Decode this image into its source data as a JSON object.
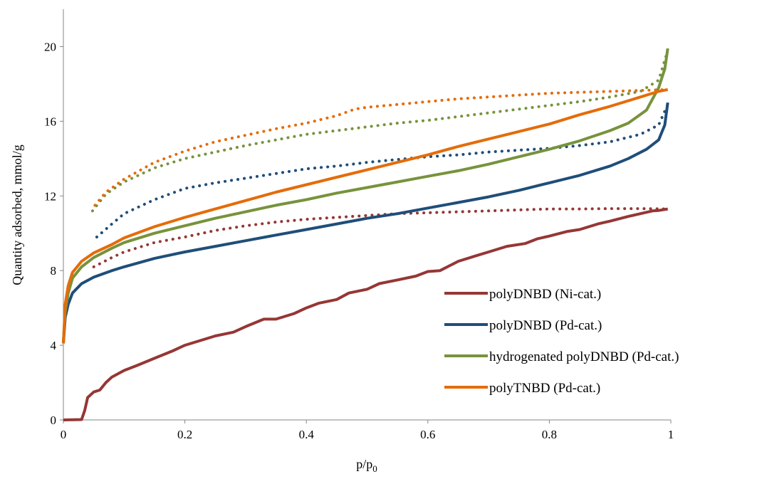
{
  "chart_data": {
    "type": "line",
    "title": "",
    "xlabel": "p/p",
    "xlabel_sub": "0",
    "ylabel": "Quantity adsorbed, mmol/g",
    "xlim": [
      0,
      1
    ],
    "ylim": [
      0,
      22
    ],
    "xticks": [
      0,
      0.2,
      0.4,
      0.6,
      0.8,
      1
    ],
    "xtick_labels": [
      "0",
      "0.2",
      "0.4",
      "0.6",
      "0.8",
      "1"
    ],
    "yticks": [
      0,
      4,
      8,
      12,
      16,
      20
    ],
    "ytick_labels": [
      "0",
      "4",
      "8",
      "12",
      "16",
      "20"
    ],
    "grid": false,
    "legend_position": "lower-right",
    "series": [
      {
        "name": "polyDNBD (Ni-cat.)",
        "color": "#953735",
        "style": "solid",
        "points": [
          [
            0,
            0
          ],
          [
            0.03,
            0.02
          ],
          [
            0.035,
            0.5
          ],
          [
            0.04,
            1.2
          ],
          [
            0.05,
            1.5
          ],
          [
            0.06,
            1.6
          ],
          [
            0.07,
            2.0
          ],
          [
            0.08,
            2.3
          ],
          [
            0.1,
            2.65
          ],
          [
            0.12,
            2.9
          ],
          [
            0.15,
            3.3
          ],
          [
            0.18,
            3.7
          ],
          [
            0.2,
            4.0
          ],
          [
            0.25,
            4.5
          ],
          [
            0.28,
            4.7
          ],
          [
            0.3,
            5.0
          ],
          [
            0.33,
            5.4
          ],
          [
            0.35,
            5.4
          ],
          [
            0.38,
            5.7
          ],
          [
            0.4,
            6.0
          ],
          [
            0.42,
            6.25
          ],
          [
            0.45,
            6.45
          ],
          [
            0.47,
            6.8
          ],
          [
            0.5,
            7.0
          ],
          [
            0.52,
            7.3
          ],
          [
            0.55,
            7.5
          ],
          [
            0.58,
            7.7
          ],
          [
            0.6,
            7.95
          ],
          [
            0.62,
            8.0
          ],
          [
            0.65,
            8.5
          ],
          [
            0.68,
            8.8
          ],
          [
            0.7,
            9.0
          ],
          [
            0.73,
            9.3
          ],
          [
            0.76,
            9.45
          ],
          [
            0.78,
            9.7
          ],
          [
            0.8,
            9.85
          ],
          [
            0.83,
            10.1
          ],
          [
            0.85,
            10.2
          ],
          [
            0.88,
            10.5
          ],
          [
            0.9,
            10.65
          ],
          [
            0.93,
            10.9
          ],
          [
            0.95,
            11.05
          ],
          [
            0.97,
            11.2
          ],
          [
            0.98,
            11.22
          ],
          [
            0.995,
            11.3
          ]
        ]
      },
      {
        "name": "",
        "color": "#953735",
        "style": "dotted",
        "points": [
          [
            0.05,
            8.2
          ],
          [
            0.08,
            8.7
          ],
          [
            0.1,
            9.0
          ],
          [
            0.15,
            9.5
          ],
          [
            0.2,
            9.8
          ],
          [
            0.25,
            10.15
          ],
          [
            0.3,
            10.4
          ],
          [
            0.35,
            10.6
          ],
          [
            0.4,
            10.75
          ],
          [
            0.45,
            10.85
          ],
          [
            0.5,
            10.95
          ],
          [
            0.55,
            11.05
          ],
          [
            0.6,
            11.1
          ],
          [
            0.65,
            11.15
          ],
          [
            0.7,
            11.2
          ],
          [
            0.75,
            11.25
          ],
          [
            0.8,
            11.3
          ],
          [
            0.85,
            11.3
          ],
          [
            0.9,
            11.32
          ],
          [
            0.95,
            11.32
          ],
          [
            0.995,
            11.3
          ]
        ]
      },
      {
        "name": "polyDNBD (Pd-cat.)",
        "color": "#1F4E79",
        "style": "solid",
        "points": [
          [
            0,
            4.1
          ],
          [
            0.003,
            5.5
          ],
          [
            0.008,
            6.2
          ],
          [
            0.015,
            6.8
          ],
          [
            0.03,
            7.3
          ],
          [
            0.05,
            7.65
          ],
          [
            0.08,
            8.0
          ],
          [
            0.1,
            8.2
          ],
          [
            0.15,
            8.65
          ],
          [
            0.2,
            9.0
          ],
          [
            0.25,
            9.3
          ],
          [
            0.3,
            9.6
          ],
          [
            0.35,
            9.9
          ],
          [
            0.4,
            10.2
          ],
          [
            0.45,
            10.5
          ],
          [
            0.5,
            10.8
          ],
          [
            0.55,
            11.05
          ],
          [
            0.6,
            11.35
          ],
          [
            0.65,
            11.65
          ],
          [
            0.7,
            11.95
          ],
          [
            0.75,
            12.3
          ],
          [
            0.8,
            12.7
          ],
          [
            0.85,
            13.1
          ],
          [
            0.9,
            13.6
          ],
          [
            0.93,
            14.0
          ],
          [
            0.96,
            14.5
          ],
          [
            0.98,
            15.0
          ],
          [
            0.99,
            15.8
          ],
          [
            0.995,
            17.0
          ]
        ]
      },
      {
        "name": "",
        "color": "#1F4E79",
        "style": "dotted",
        "points": [
          [
            0.055,
            9.8
          ],
          [
            0.08,
            10.5
          ],
          [
            0.1,
            11.05
          ],
          [
            0.15,
            11.8
          ],
          [
            0.2,
            12.4
          ],
          [
            0.25,
            12.7
          ],
          [
            0.3,
            12.95
          ],
          [
            0.35,
            13.2
          ],
          [
            0.4,
            13.45
          ],
          [
            0.45,
            13.6
          ],
          [
            0.5,
            13.8
          ],
          [
            0.55,
            13.95
          ],
          [
            0.6,
            14.1
          ],
          [
            0.65,
            14.2
          ],
          [
            0.7,
            14.35
          ],
          [
            0.75,
            14.45
          ],
          [
            0.8,
            14.55
          ],
          [
            0.85,
            14.7
          ],
          [
            0.9,
            14.9
          ],
          [
            0.95,
            15.3
          ],
          [
            0.98,
            15.8
          ],
          [
            0.995,
            16.9
          ]
        ]
      },
      {
        "name": "hydrogenated polyDNBD (Pd-cat.)",
        "color": "#77933C",
        "style": "solid",
        "points": [
          [
            0,
            4.2
          ],
          [
            0.003,
            5.8
          ],
          [
            0.008,
            6.8
          ],
          [
            0.015,
            7.6
          ],
          [
            0.03,
            8.2
          ],
          [
            0.05,
            8.7
          ],
          [
            0.08,
            9.2
          ],
          [
            0.1,
            9.5
          ],
          [
            0.15,
            10.0
          ],
          [
            0.2,
            10.4
          ],
          [
            0.25,
            10.8
          ],
          [
            0.3,
            11.15
          ],
          [
            0.35,
            11.5
          ],
          [
            0.4,
            11.8
          ],
          [
            0.45,
            12.15
          ],
          [
            0.5,
            12.45
          ],
          [
            0.55,
            12.75
          ],
          [
            0.6,
            13.05
          ],
          [
            0.65,
            13.35
          ],
          [
            0.7,
            13.7
          ],
          [
            0.75,
            14.1
          ],
          [
            0.8,
            14.5
          ],
          [
            0.85,
            14.95
          ],
          [
            0.9,
            15.5
          ],
          [
            0.93,
            15.9
          ],
          [
            0.96,
            16.6
          ],
          [
            0.98,
            17.8
          ],
          [
            0.99,
            18.8
          ],
          [
            0.995,
            19.9
          ]
        ]
      },
      {
        "name": "",
        "color": "#77933C",
        "style": "dotted",
        "points": [
          [
            0.048,
            11.2
          ],
          [
            0.07,
            12.1
          ],
          [
            0.1,
            12.75
          ],
          [
            0.15,
            13.5
          ],
          [
            0.2,
            14.0
          ],
          [
            0.25,
            14.35
          ],
          [
            0.3,
            14.7
          ],
          [
            0.35,
            15.0
          ],
          [
            0.4,
            15.3
          ],
          [
            0.45,
            15.5
          ],
          [
            0.5,
            15.7
          ],
          [
            0.55,
            15.9
          ],
          [
            0.6,
            16.05
          ],
          [
            0.65,
            16.25
          ],
          [
            0.7,
            16.45
          ],
          [
            0.75,
            16.65
          ],
          [
            0.8,
            16.85
          ],
          [
            0.85,
            17.05
          ],
          [
            0.9,
            17.3
          ],
          [
            0.95,
            17.6
          ],
          [
            0.98,
            18.2
          ],
          [
            0.995,
            19.8
          ]
        ]
      },
      {
        "name": "polyTNBD (Pd-cat.)",
        "color": "#E46C0A",
        "style": "solid",
        "points": [
          [
            0,
            4.1
          ],
          [
            0.003,
            6.2
          ],
          [
            0.008,
            7.2
          ],
          [
            0.015,
            7.9
          ],
          [
            0.03,
            8.5
          ],
          [
            0.05,
            8.95
          ],
          [
            0.08,
            9.4
          ],
          [
            0.1,
            9.75
          ],
          [
            0.15,
            10.35
          ],
          [
            0.2,
            10.85
          ],
          [
            0.25,
            11.3
          ],
          [
            0.3,
            11.75
          ],
          [
            0.35,
            12.2
          ],
          [
            0.4,
            12.6
          ],
          [
            0.45,
            13.0
          ],
          [
            0.5,
            13.4
          ],
          [
            0.55,
            13.8
          ],
          [
            0.6,
            14.2
          ],
          [
            0.65,
            14.65
          ],
          [
            0.7,
            15.05
          ],
          [
            0.75,
            15.45
          ],
          [
            0.8,
            15.85
          ],
          [
            0.85,
            16.35
          ],
          [
            0.9,
            16.8
          ],
          [
            0.95,
            17.3
          ],
          [
            0.98,
            17.6
          ],
          [
            0.995,
            17.7
          ]
        ]
      },
      {
        "name": "",
        "color": "#E46C0A",
        "style": "dotted",
        "points": [
          [
            0.052,
            11.5
          ],
          [
            0.07,
            12.2
          ],
          [
            0.1,
            12.9
          ],
          [
            0.15,
            13.8
          ],
          [
            0.2,
            14.4
          ],
          [
            0.25,
            14.9
          ],
          [
            0.3,
            15.25
          ],
          [
            0.35,
            15.6
          ],
          [
            0.4,
            15.9
          ],
          [
            0.45,
            16.3
          ],
          [
            0.48,
            16.65
          ],
          [
            0.5,
            16.75
          ],
          [
            0.55,
            16.9
          ],
          [
            0.6,
            17.05
          ],
          [
            0.65,
            17.2
          ],
          [
            0.7,
            17.3
          ],
          [
            0.75,
            17.4
          ],
          [
            0.8,
            17.5
          ],
          [
            0.85,
            17.55
          ],
          [
            0.9,
            17.6
          ],
          [
            0.95,
            17.65
          ],
          [
            0.995,
            17.7
          ]
        ]
      }
    ]
  }
}
